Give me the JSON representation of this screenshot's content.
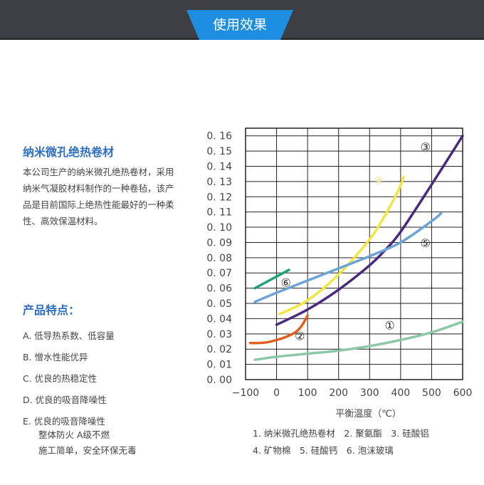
{
  "header": {
    "tab_label": "使用效果"
  },
  "product": {
    "title": "纳米微孔绝热卷材",
    "description": "本公司生产的纳米微孔绝热卷材，采用纳米气凝胶材料制作的一种卷毡，该产品是目前国际上绝热性能最好的一种柔性、高效保温材料。"
  },
  "features": {
    "title": "产品特点：",
    "items": [
      {
        "text": "A. 低导热系数、低容量"
      },
      {
        "text": "B. 憎水性能优异"
      },
      {
        "text": "C. 优良的热稳定性"
      },
      {
        "text": "D. 优良的吸音降噪性"
      },
      {
        "text": "E. 优良的吸音降噪性",
        "sub": [
          "整体防火 A级不燃",
          "施工简单，安全环保无毒"
        ]
      }
    ]
  },
  "legend": {
    "line1": "1. 纳米微孔绝热卷材　2. 聚氨酯　3. 硅酸铝",
    "line2": "4. 矿物棉　5. 硅酸钙　6. 泡沫玻璃"
  },
  "chart_data": {
    "type": "line",
    "xlabel": "平衡温度（℃）",
    "ylabel": "",
    "xlim": [
      -100,
      600
    ],
    "ylim": [
      0,
      0.165
    ],
    "xticks": [
      -100,
      0,
      100,
      200,
      300,
      400,
      500,
      600
    ],
    "xtick_labels": [
      "−100",
      "0",
      "100",
      "200",
      "300",
      "400",
      "500",
      "600"
    ],
    "yticks": [
      0,
      0.01,
      0.02,
      0.03,
      0.04,
      0.05,
      0.06,
      0.07,
      0.08,
      0.09,
      0.1,
      0.11,
      0.12,
      0.13,
      0.14,
      0.15,
      0.16
    ],
    "ytick_labels": [
      "0. 00",
      "0. 01",
      "0. 02",
      "0. 03",
      "0. 04",
      "0. 05",
      "0. 06",
      "0. 07",
      "0. 08",
      "0. 09",
      "0. 10",
      "0. 11",
      "0. 12",
      "0. 13",
      "0. 14",
      "0. 15",
      "0. 16"
    ],
    "grid": true,
    "series": [
      {
        "name": "①",
        "color": "#8cc8a8",
        "label_at": [
          365,
          0.033
        ],
        "x": [
          -70,
          0,
          100,
          200,
          300,
          400,
          500,
          600
        ],
        "y": [
          0.013,
          0.015,
          0.017,
          0.019,
          0.022,
          0.026,
          0.031,
          0.038
        ]
      },
      {
        "name": "②",
        "color": "#e2601c",
        "label_at": [
          75,
          0.026
        ],
        "x": [
          -85,
          -60,
          -30,
          0,
          30,
          60,
          80,
          100
        ],
        "y": [
          0.024,
          0.024,
          0.0245,
          0.026,
          0.028,
          0.031,
          0.035,
          0.042
        ]
      },
      {
        "name": "③",
        "color": "#4a2a7e",
        "label_at": [
          480,
          0.15
        ],
        "x": [
          0,
          100,
          200,
          300,
          350,
          400,
          500,
          600
        ],
        "y": [
          0.036,
          0.046,
          0.059,
          0.075,
          0.085,
          0.097,
          0.128,
          0.16
        ]
      },
      {
        "name": "④",
        "color": "#f2e640",
        "label_at": [
          330,
          0.128
        ],
        "x": [
          10,
          100,
          200,
          300,
          350,
          390,
          410
        ],
        "y": [
          0.043,
          0.052,
          0.069,
          0.092,
          0.108,
          0.123,
          0.133
        ]
      },
      {
        "name": "⑤",
        "color": "#6ba4d8",
        "label_at": [
          480,
          0.087
        ],
        "x": [
          -70,
          0,
          100,
          200,
          300,
          400,
          500,
          530
        ],
        "y": [
          0.051,
          0.057,
          0.065,
          0.073,
          0.081,
          0.09,
          0.104,
          0.109
        ]
      },
      {
        "name": "⑥",
        "color": "#1ea07a",
        "label_at": [
          30,
          0.061
        ],
        "x": [
          -70,
          40
        ],
        "y": [
          0.06,
          0.072
        ]
      }
    ]
  }
}
